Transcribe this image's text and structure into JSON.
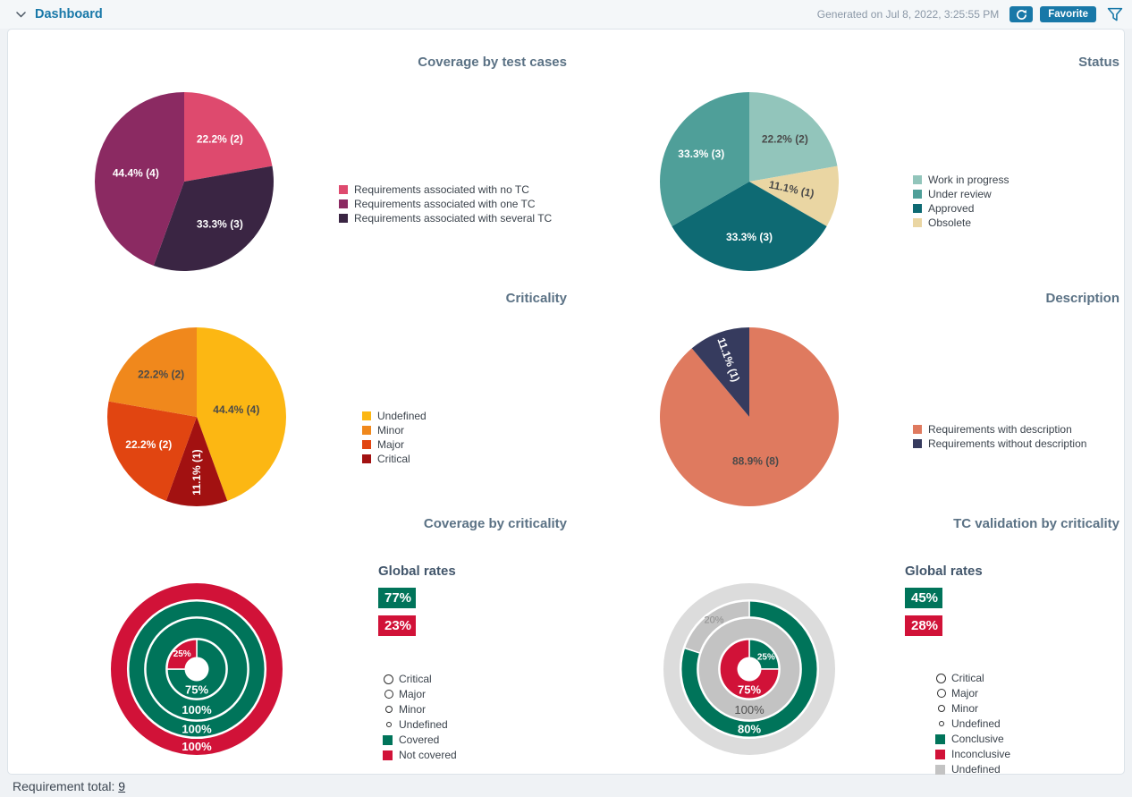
{
  "ui": {
    "topbar": {
      "title": "Dashboard",
      "generated": "Generated on Jul 8, 2022, 3:25:55 PM",
      "favorite": "Favorite"
    },
    "footer": {
      "label": "Requirement total:",
      "value": "9"
    },
    "colors": {
      "accent": "#1878a8",
      "chart_title": "#5b7285",
      "covered_green": "#00745a",
      "not_covered_red": "#d11238"
    }
  },
  "chart_data": [
    {
      "id": "coverage-by-test-cases",
      "type": "pie",
      "title": "Coverage by test cases",
      "total": 9,
      "slices": [
        {
          "label": "Requirements associated with no TC",
          "count": 2,
          "pct_label": "22.2% (2)",
          "color": "#de4a6e",
          "text_color": "#ffffff"
        },
        {
          "label": "Requirements associated with several TC",
          "count": 3,
          "pct_label": "33.3% (3)",
          "color": "#3a2543",
          "text_color": "#ffffff"
        },
        {
          "label": "Requirements associated with one TC",
          "count": 4,
          "pct_label": "44.4% (4)",
          "color": "#8b2a62",
          "text_color": "#ffffff",
          "label_r": 0.55
        }
      ],
      "legend_order": [
        0,
        2,
        1
      ]
    },
    {
      "id": "status",
      "type": "pie",
      "title": "Status",
      "total": 9,
      "slices": [
        {
          "label": "Work in progress",
          "count": 2,
          "pct_label": "22.2% (2)",
          "color": "#92c5bb",
          "text_color": "#4a4a4a"
        },
        {
          "label": "Obsolete",
          "count": 1,
          "pct_label": "11.1% (1)",
          "color": "#ead6a3",
          "text_color": "#4a4a4a",
          "rotation": 12,
          "label_r": 0.48
        },
        {
          "label": "Approved",
          "count": 3,
          "pct_label": "33.3% (3)",
          "color": "#0e6a73",
          "text_color": "#ffffff"
        },
        {
          "label": "Under review",
          "count": 3,
          "pct_label": "33.3% (3)",
          "color": "#4f9f99",
          "text_color": "#ffffff"
        }
      ],
      "legend_order": [
        0,
        3,
        2,
        1
      ]
    },
    {
      "id": "criticality",
      "type": "pie",
      "title": "Criticality",
      "total": 9,
      "slices": [
        {
          "label": "Undefined",
          "count": 4,
          "pct_label": "44.4% (4)",
          "color": "#fcb713",
          "text_color": "#4a4a4a",
          "label_r": 0.45
        },
        {
          "label": "Critical",
          "count": 1,
          "pct_label": "11.1% (1)",
          "color": "#a21111",
          "text_color": "#ffffff",
          "rotation": -90
        },
        {
          "label": "Major",
          "count": 2,
          "pct_label": "22.2% (2)",
          "color": "#e14511",
          "text_color": "#ffffff"
        },
        {
          "label": "Minor",
          "count": 2,
          "pct_label": "22.2% (2)",
          "color": "#f0881c",
          "text_color": "#4a4a4a"
        }
      ],
      "legend_order": [
        0,
        3,
        2,
        1
      ]
    },
    {
      "id": "description",
      "type": "pie",
      "title": "Description",
      "total": 9,
      "slices": [
        {
          "label": "Requirements with description",
          "count": 8,
          "pct_label": "88.9% (8)",
          "color": "#df7a5f",
          "text_color": "#4a4a4a",
          "label_r": 0.5,
          "label_angle": 172
        },
        {
          "label": "Requirements without description",
          "count": 1,
          "pct_label": "11.1% (1)",
          "color": "#363b5e",
          "text_color": "#ffffff",
          "rotation": 70,
          "label_r": 0.68
        }
      ],
      "legend_order": [
        0,
        1
      ]
    },
    {
      "id": "coverage-by-criticality",
      "type": "rings",
      "title": "Coverage by criticality",
      "global_rates": {
        "heading": "Global rates",
        "items": [
          {
            "name": "covered",
            "value": "77%",
            "color": "#00745a"
          },
          {
            "name": "not-covered",
            "value": "23%",
            "color": "#d11238"
          }
        ]
      },
      "rings": [
        {
          "name": "Critical",
          "segments": [
            {
              "pct": 100,
              "color": "#d11238",
              "label": "100%",
              "label_color": "#ffffff"
            }
          ]
        },
        {
          "name": "Major",
          "segments": [
            {
              "pct": 100,
              "color": "#00745a",
              "label": "100%",
              "label_color": "#ffffff"
            }
          ]
        },
        {
          "name": "Minor",
          "segments": [
            {
              "pct": 100,
              "color": "#00745a",
              "label": "100%",
              "label_color": "#ffffff"
            }
          ]
        },
        {
          "name": "Undefined",
          "segments": [
            {
              "pct": 75,
              "color": "#00745a",
              "label": "75%",
              "label_color": "#ffffff",
              "label_angle": 180
            },
            {
              "pct": 25,
              "color": "#d11238",
              "label": "25%",
              "label_color": "#ffffff",
              "label_angle": 315,
              "label_size": 10
            }
          ]
        }
      ],
      "legend": [
        {
          "label": "Critical",
          "marker": "circle",
          "size": 11
        },
        {
          "label": "Major",
          "marker": "circle",
          "size": 10
        },
        {
          "label": "Minor",
          "marker": "circle",
          "size": 8
        },
        {
          "label": "Undefined",
          "marker": "circle",
          "size": 6
        },
        {
          "label": "Covered",
          "marker": "square",
          "color": "#00745a"
        },
        {
          "label": "Not covered",
          "marker": "square",
          "color": "#d11238"
        }
      ]
    },
    {
      "id": "tc-validation-by-criticality",
      "type": "rings",
      "title": "TC validation by criticality",
      "global_rates": {
        "heading": "Global rates",
        "items": [
          {
            "name": "conclusive",
            "value": "45%",
            "color": "#00745a"
          },
          {
            "name": "inconclusive",
            "value": "28%",
            "color": "#d11238"
          }
        ]
      },
      "rings": [
        {
          "name": "Critical",
          "segments": [
            {
              "pct": 100,
              "color": "#dcdcdc",
              "label": null
            }
          ]
        },
        {
          "name": "Major",
          "segments": [
            {
              "pct": 80,
              "color": "#00745a",
              "label": "80%",
              "label_color": "#ffffff",
              "label_angle": 180
            },
            {
              "pct": 20,
              "color": "#c3c3c3",
              "label": "20%",
              "label_color": "#8f8f8f",
              "label_angle": 324,
              "label_size": 11
            }
          ]
        },
        {
          "name": "Minor",
          "segments": [
            {
              "pct": 100,
              "color": "#c3c3c3",
              "label": "100%",
              "label_color": "#4f4f4f"
            }
          ]
        },
        {
          "name": "Undefined",
          "segments": [
            {
              "pct": 25,
              "color": "#00745a",
              "label": "25%",
              "label_color": "#ffffff",
              "label_angle": 55,
              "label_size": 10
            },
            {
              "pct": 75,
              "color": "#d11238",
              "label": "75%",
              "label_color": "#ffffff",
              "label_angle": 180
            }
          ]
        }
      ],
      "legend": [
        {
          "label": "Critical",
          "marker": "circle",
          "size": 11
        },
        {
          "label": "Major",
          "marker": "circle",
          "size": 10
        },
        {
          "label": "Minor",
          "marker": "circle",
          "size": 8
        },
        {
          "label": "Undefined",
          "marker": "circle",
          "size": 6
        },
        {
          "label": "Conclusive",
          "marker": "square",
          "color": "#00745a"
        },
        {
          "label": "Inconclusive",
          "marker": "square",
          "color": "#d11238"
        },
        {
          "label": "Undefined",
          "marker": "square",
          "color": "#c3c3c3"
        }
      ]
    }
  ]
}
